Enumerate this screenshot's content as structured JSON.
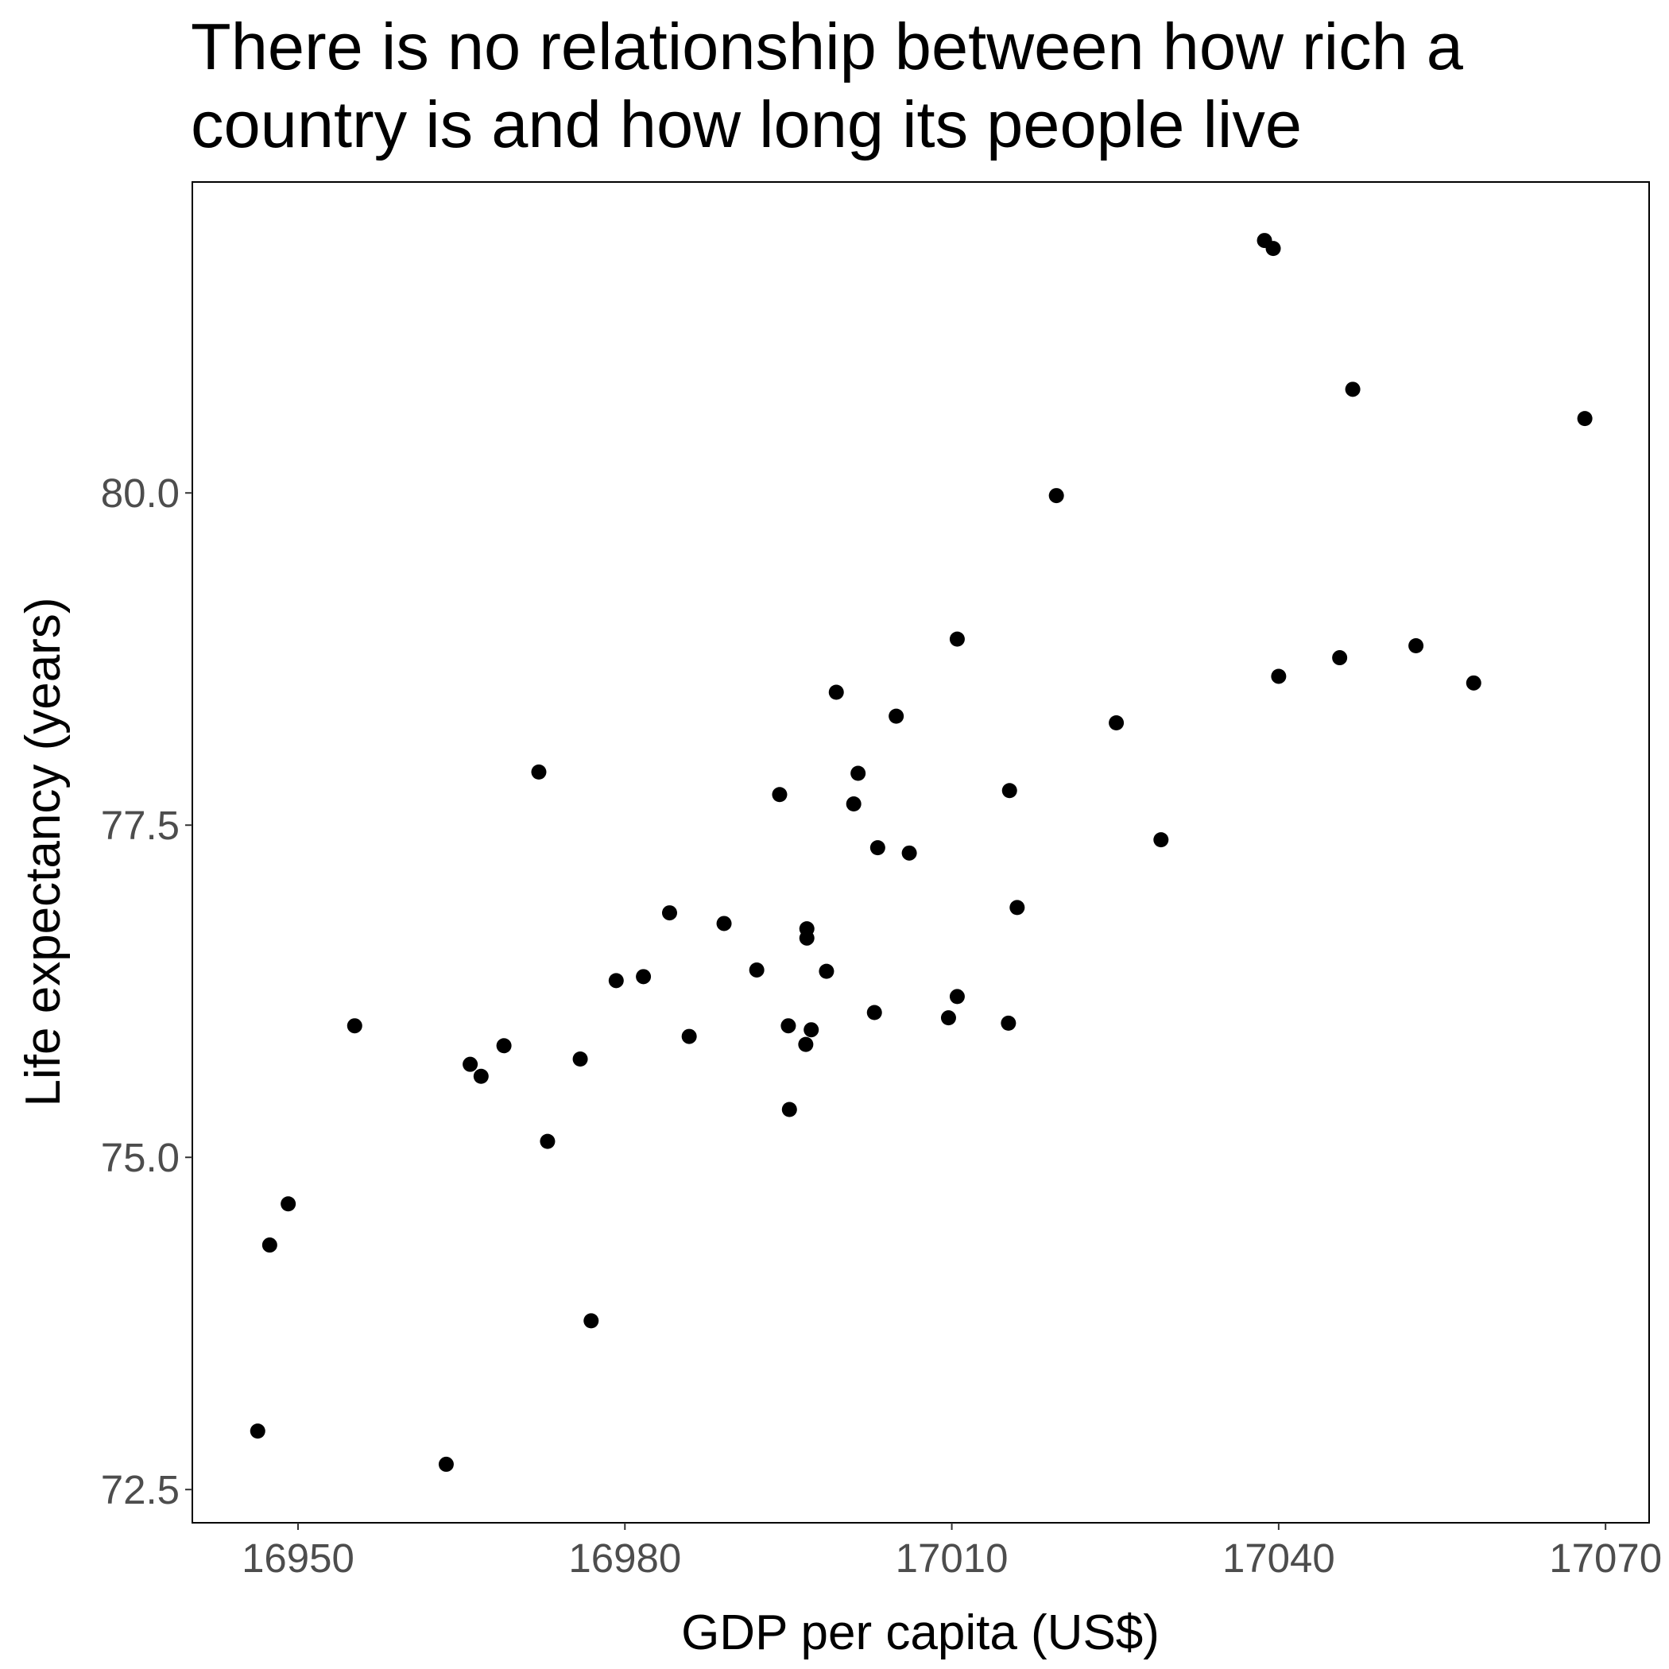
{
  "chart_data": {
    "type": "scatter",
    "title": "There is no relationship between how rich a country is and how long its people live",
    "x_label": "GDP per capita (US$)",
    "y_label": "Life expectancy (years)",
    "color": "#000000",
    "x": [
      17038.7,
      17039.5,
      17046.8,
      17068.1,
      17019.6,
      17010.5,
      17052.6,
      17045.6,
      17040.0,
      17057.9,
      16999.4,
      17004.9,
      17025.1,
      16972.1,
      17001.4,
      16994.2,
      17015.3,
      17001.0,
      17029.2,
      17003.2,
      17006.1,
      16984.1,
      17016.0,
      16989.1,
      16996.7,
      16996.7,
      16992.1,
      16998.5,
      16981.7,
      16979.2,
      17010.5,
      17002.9,
      17009.7,
      16955.2,
      16995.0,
      17015.2,
      16997.1,
      16985.9,
      16968.9,
      16996.6,
      16975.9,
      16965.8,
      16966.8,
      16995.1,
      16972.9,
      16949.1,
      16947.4,
      16976.9,
      16946.3,
      16963.6
    ],
    "values": [
      81.9,
      81.84,
      80.78,
      80.56,
      79.98,
      78.9,
      78.85,
      78.76,
      78.62,
      78.57,
      78.5,
      78.32,
      78.27,
      77.9,
      77.89,
      77.73,
      77.76,
      77.66,
      77.39,
      77.33,
      77.29,
      76.84,
      76.88,
      76.76,
      76.72,
      76.65,
      76.41,
      76.4,
      76.36,
      76.33,
      76.21,
      76.09,
      76.05,
      75.99,
      75.99,
      76.01,
      75.96,
      75.91,
      75.84,
      75.85,
      75.74,
      75.7,
      75.61,
      75.36,
      75.12,
      74.65,
      74.34,
      73.77,
      72.94,
      72.69
    ],
    "xlim": [
      16940.3,
      17074.0
    ],
    "ylim": [
      72.25,
      82.34
    ],
    "xticks": [
      16950,
      16980,
      17010,
      17040,
      17070
    ],
    "yticks": [
      {
        "value": 72.5,
        "label": "72.5"
      },
      {
        "value": 75,
        "label": "75.0"
      },
      {
        "value": 77.5,
        "label": "77.5"
      },
      {
        "value": 80,
        "label": "80.0"
      }
    ]
  }
}
